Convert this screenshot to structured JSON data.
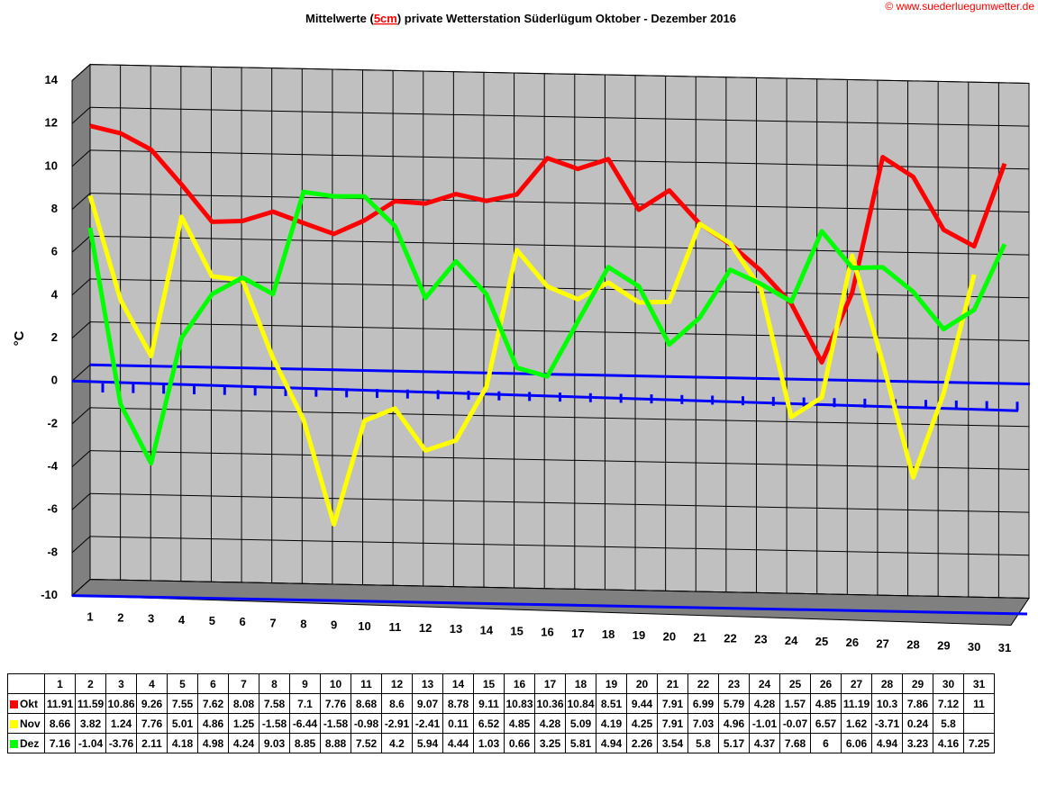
{
  "chart_data": {
    "type": "line",
    "title": [
      "Mittelwerte (",
      "5cm",
      ") private Wetterstation Süderlügum Oktober - Dezember 2016"
    ],
    "source": "© www.suederluegumwetter.de",
    "y_label": "°C",
    "categories": [
      "1",
      "2",
      "3",
      "4",
      "5",
      "6",
      "7",
      "8",
      "9",
      "10",
      "11",
      "12",
      "13",
      "14",
      "15",
      "16",
      "17",
      "18",
      "19",
      "20",
      "21",
      "22",
      "23",
      "24",
      "25",
      "26",
      "27",
      "28",
      "29",
      "30",
      "31"
    ],
    "series": [
      {
        "name": "Okt",
        "color": "#ff0000",
        "values": [
          11.91,
          11.59,
          10.86,
          9.26,
          7.55,
          7.62,
          8.08,
          7.58,
          7.1,
          7.76,
          8.68,
          8.6,
          9.07,
          8.78,
          9.11,
          10.83,
          10.36,
          10.84,
          8.51,
          9.44,
          7.91,
          6.99,
          5.79,
          4.28,
          1.57,
          4.85,
          11.19,
          10.3,
          7.86,
          7.12,
          11
        ]
      },
      {
        "name": "Nov",
        "color": "#ffff00",
        "values": [
          8.66,
          3.82,
          1.24,
          7.76,
          5.01,
          4.86,
          1.25,
          -1.58,
          -6.44,
          -1.58,
          -0.98,
          -2.91,
          -2.41,
          0.11,
          6.52,
          4.85,
          4.28,
          5.09,
          4.19,
          4.25,
          7.91,
          7.03,
          4.96,
          -1.01,
          -0.07,
          6.57,
          1.62,
          -3.71,
          0.24,
          5.8,
          null
        ]
      },
      {
        "name": "Dez",
        "color": "#00ff00",
        "values": [
          7.16,
          -1.04,
          -3.76,
          2.11,
          4.18,
          4.98,
          4.24,
          9.03,
          8.85,
          8.88,
          7.52,
          4.2,
          5.94,
          4.44,
          1.03,
          0.66,
          3.25,
          5.81,
          4.94,
          2.26,
          3.54,
          5.8,
          5.17,
          4.37,
          7.68,
          6,
          6.06,
          4.94,
          3.23,
          4.16,
          7.25
        ]
      }
    ],
    "ylim": [
      -10,
      14
    ],
    "yticks": [
      -10,
      -8,
      -6,
      -4,
      -2,
      0,
      2,
      4,
      6,
      8,
      10,
      12,
      14
    ],
    "grid": true
  }
}
